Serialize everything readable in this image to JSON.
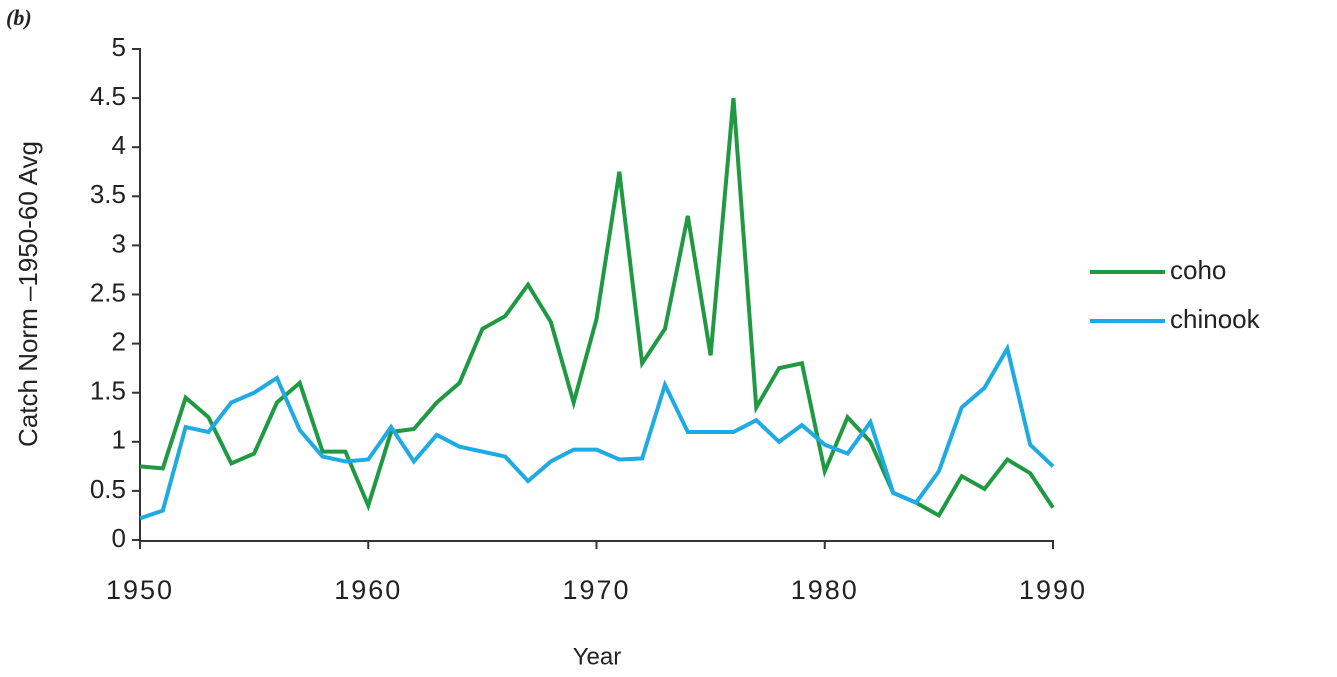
{
  "panel_label": "(b)",
  "chart_data": {
    "type": "line",
    "xlabel": "Year",
    "ylabel": "Catch  Norm –1950-60  Avg",
    "x": [
      1950,
      1951,
      1952,
      1953,
      1954,
      1955,
      1956,
      1957,
      1958,
      1959,
      1960,
      1961,
      1962,
      1963,
      1964,
      1965,
      1966,
      1967,
      1968,
      1969,
      1970,
      1971,
      1972,
      1973,
      1974,
      1975,
      1976,
      1977,
      1978,
      1979,
      1980,
      1981,
      1982,
      1983,
      1984,
      1985,
      1986,
      1987,
      1988,
      1989,
      1990
    ],
    "series": [
      {
        "name": "coho",
        "color": "#1f9a42",
        "values": [
          0.75,
          0.73,
          1.45,
          1.25,
          0.78,
          0.88,
          1.4,
          1.6,
          0.9,
          0.9,
          0.35,
          1.1,
          1.13,
          1.4,
          1.6,
          2.15,
          2.28,
          2.6,
          2.22,
          1.4,
          2.25,
          3.75,
          1.8,
          2.15,
          3.3,
          1.88,
          4.5,
          1.35,
          1.75,
          1.8,
          0.7,
          1.25,
          1.0,
          0.48,
          0.38,
          0.25,
          0.65,
          0.52,
          0.82,
          0.68,
          0.33
        ]
      },
      {
        "name": "chinook",
        "color": "#1eaae2",
        "values": [
          0.22,
          0.3,
          1.15,
          1.1,
          1.4,
          1.5,
          1.65,
          1.12,
          0.85,
          0.8,
          0.82,
          1.15,
          0.8,
          1.07,
          0.95,
          0.9,
          0.85,
          0.6,
          0.8,
          0.92,
          0.92,
          0.82,
          0.83,
          1.58,
          1.1,
          1.1,
          1.1,
          1.22,
          1.0,
          1.17,
          0.97,
          0.88,
          1.2,
          0.48,
          0.38,
          0.7,
          1.35,
          1.55,
          1.95,
          0.97,
          0.75
        ]
      }
    ],
    "xlim": [
      1950,
      1990
    ],
    "xticks": [
      1950,
      1960,
      1970,
      1980,
      1990
    ],
    "ylim": [
      0,
      5
    ],
    "yticks": [
      0,
      0.5,
      1,
      1.5,
      2,
      2.5,
      3,
      3.5,
      4,
      4.5,
      5
    ],
    "grid": false,
    "legend": "right"
  }
}
